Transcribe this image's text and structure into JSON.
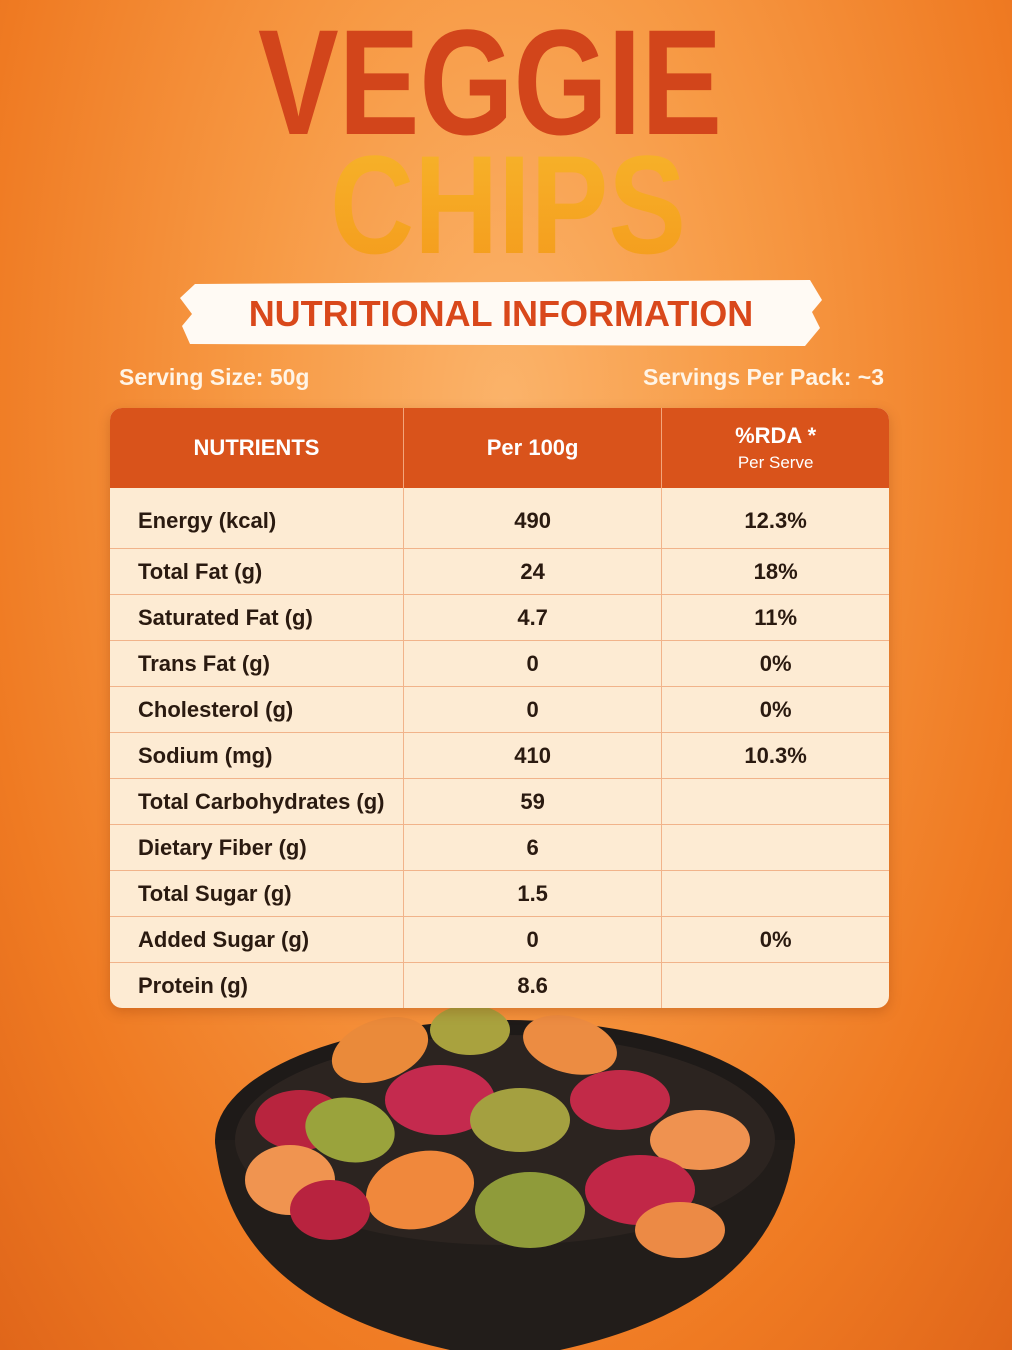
{
  "title": {
    "line1": "VEGGIE",
    "line2": "CHIPS"
  },
  "banner": "NUTRITIONAL INFORMATION",
  "serving_size": "Serving Size: 50g",
  "servings_per_pack": "Servings Per Pack: ~3",
  "table": {
    "columns": [
      "NUTRIENTS",
      "Per 100g",
      "%RDA *"
    ],
    "rda_note": "Per Serve",
    "rows": [
      {
        "nutrient": "Energy (kcal)",
        "per_100g": "490",
        "rda": "12.3%"
      },
      {
        "nutrient": "Total Fat (g)",
        "per_100g": "24",
        "rda": "18%"
      },
      {
        "nutrient": "Saturated Fat (g)",
        "per_100g": "4.7",
        "rda": "11%"
      },
      {
        "nutrient": "Trans Fat (g)",
        "per_100g": "0",
        "rda": "0%"
      },
      {
        "nutrient": "Cholesterol (g)",
        "per_100g": "0",
        "rda": "0%"
      },
      {
        "nutrient": "Sodium (mg)",
        "per_100g": "410",
        "rda": "10.3%"
      },
      {
        "nutrient": "Total Carbohydrates (g)",
        "per_100g": "59"
      },
      {
        "nutrient": "Dietary Fiber (g)",
        "per_100g": "6"
      },
      {
        "nutrient": "Total Sugar (g)",
        "per_100g": "1.5"
      },
      {
        "nutrient": "Added Sugar (g)",
        "per_100g": "0",
        "rda": "0%"
      },
      {
        "nutrient": "Protein (g)",
        "per_100g": "8.6"
      }
    ]
  }
}
